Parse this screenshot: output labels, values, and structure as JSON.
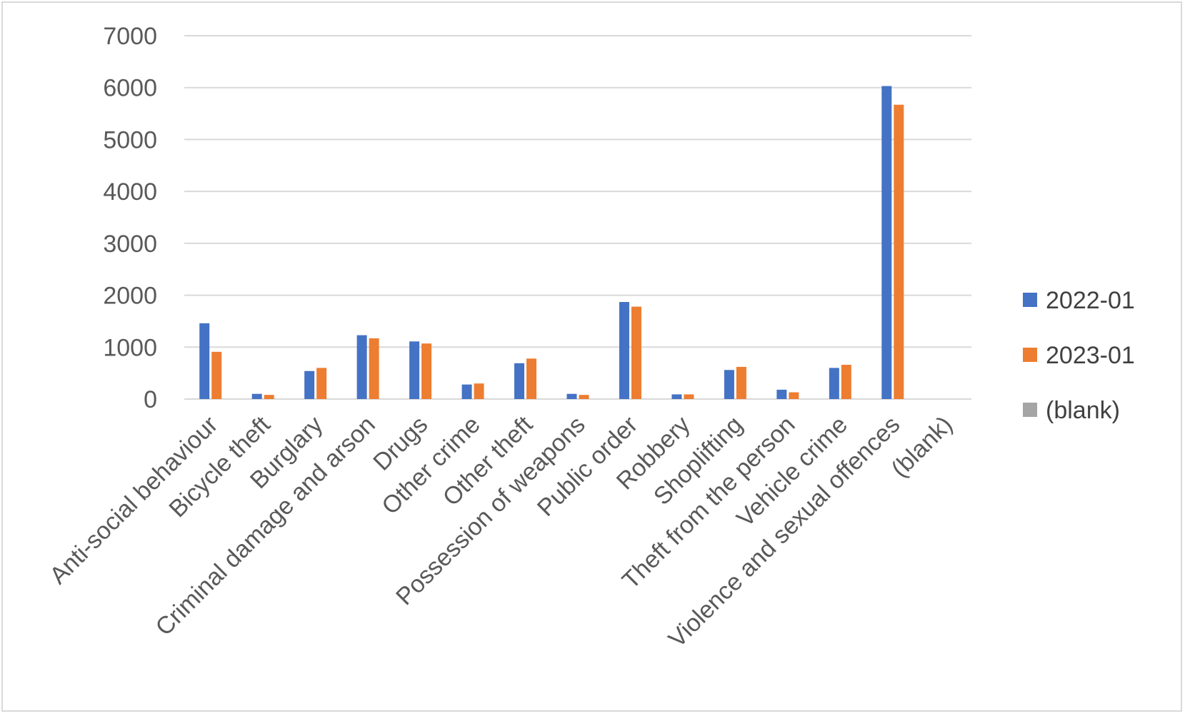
{
  "chart_data": {
    "type": "bar",
    "categories": [
      "Anti-social behaviour",
      "Bicycle theft",
      "Burglary",
      "Criminal damage and arson",
      "Drugs",
      "Other crime",
      "Other theft",
      "Possession of weapons",
      "Public order",
      "Robbery",
      "Shoplifting",
      "Theft from the person",
      "Vehicle crime",
      "Violence and sexual offences",
      "(blank)"
    ],
    "series": [
      {
        "name": "2022-01",
        "color": "#4472c4",
        "values": [
          1460,
          100,
          540,
          1230,
          1110,
          280,
          690,
          100,
          1870,
          90,
          560,
          180,
          600,
          6030,
          null
        ]
      },
      {
        "name": "2023-01",
        "color": "#ed7d31",
        "values": [
          910,
          80,
          600,
          1170,
          1070,
          300,
          780,
          80,
          1780,
          90,
          620,
          130,
          660,
          5670,
          null
        ]
      },
      {
        "name": "(blank)",
        "color": "#a5a5a5",
        "values": [
          null,
          null,
          null,
          null,
          null,
          null,
          null,
          null,
          null,
          null,
          null,
          null,
          null,
          null,
          null
        ]
      }
    ],
    "yticks": [
      "0",
      "1000",
      "2000",
      "3000",
      "4000",
      "5000",
      "6000",
      "7000"
    ],
    "ylim": [
      0,
      7000
    ],
    "grid": true,
    "legend_position": "right",
    "title": "",
    "xlabel": "",
    "ylabel": ""
  }
}
